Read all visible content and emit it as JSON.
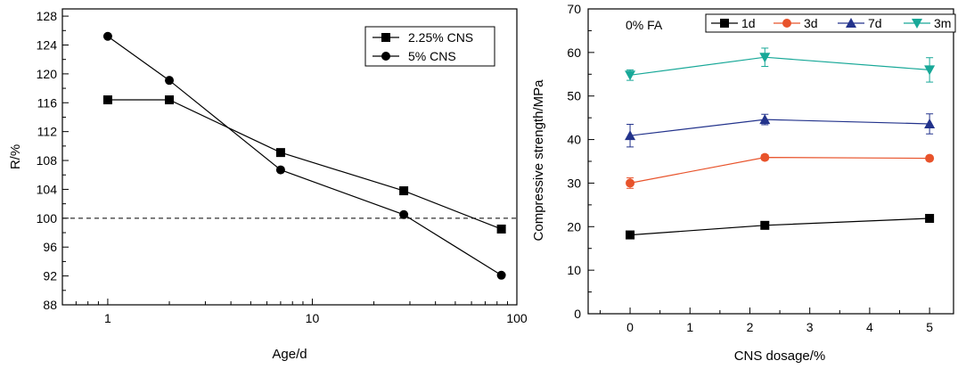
{
  "chart_data": [
    {
      "type": "line",
      "xlabel": "Age/d",
      "ylabel": "R/%",
      "x_scale": "log",
      "xlim": [
        0.6,
        100
      ],
      "ylim": [
        88,
        129
      ],
      "x_tick_labels": [
        "1",
        "10",
        "100"
      ],
      "y_tick_labels": [
        "88",
        "92",
        "96",
        "100",
        "104",
        "108",
        "112",
        "116",
        "120",
        "124",
        "128"
      ],
      "reference_line": {
        "y": 100,
        "style": "dashed"
      },
      "legend_position": "top-right",
      "series": [
        {
          "name": "2.25% CNS",
          "marker": "square",
          "x": [
            1,
            2,
            7,
            28,
            84
          ],
          "values": [
            116.4,
            116.4,
            109.1,
            103.8,
            98.5
          ]
        },
        {
          "name": "5% CNS",
          "marker": "circle",
          "x": [
            1,
            2,
            7,
            28,
            84
          ],
          "values": [
            125.2,
            119.1,
            106.7,
            100.5,
            92.1
          ]
        }
      ]
    },
    {
      "type": "line",
      "xlabel": "CNS dosage/%",
      "ylabel": "Compressive strength/MPa",
      "annotation": "0% FA",
      "xlim": [
        -0.7,
        5.4
      ],
      "ylim": [
        0,
        70
      ],
      "x_tick_labels": [
        "0",
        "1",
        "2",
        "3",
        "4",
        "5"
      ],
      "y_tick_labels": [
        "0",
        "10",
        "20",
        "30",
        "40",
        "50",
        "60",
        "70"
      ],
      "legend_position": "top",
      "series": [
        {
          "name": "1d",
          "marker": "square",
          "color": "#000000",
          "x": [
            0,
            2.25,
            5
          ],
          "values": [
            18.1,
            20.3,
            21.9
          ],
          "err": [
            0.5,
            0.6,
            0.5
          ]
        },
        {
          "name": "3d",
          "marker": "circle",
          "color": "#e8532b",
          "x": [
            0,
            2.25,
            5
          ],
          "values": [
            30.0,
            35.9,
            35.7
          ],
          "err": [
            1.2,
            0.6,
            0.5
          ]
        },
        {
          "name": "7d",
          "marker": "triangle-up",
          "color": "#23338c",
          "x": [
            0,
            2.25,
            5
          ],
          "values": [
            40.9,
            44.6,
            43.6
          ],
          "err": [
            2.6,
            1.2,
            2.3
          ]
        },
        {
          "name": "3m",
          "marker": "triangle-down",
          "color": "#18a898",
          "x": [
            0,
            2.25,
            5
          ],
          "values": [
            54.8,
            58.9,
            56.0
          ],
          "err": [
            1.2,
            2.1,
            2.8
          ]
        }
      ]
    }
  ]
}
